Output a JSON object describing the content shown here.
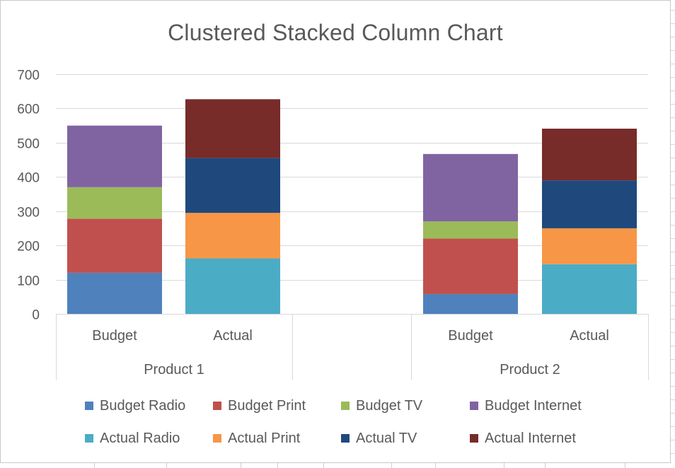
{
  "chart_data": {
    "type": "bar",
    "stacked": true,
    "title": "Clustered Stacked Column Chart",
    "ylim": [
      0,
      700
    ],
    "yticks": [
      0,
      100,
      200,
      300,
      400,
      500,
      600,
      700
    ],
    "grid": true,
    "legend_position": "bottom",
    "groups": [
      {
        "label": "Product 1",
        "columns": [
          {
            "label": "Budget",
            "segments": [
              {
                "name": "Budget Radio",
                "value": 120,
                "color": "#4f81bd"
              },
              {
                "name": "Budget Print",
                "value": 158,
                "color": "#c0504d"
              },
              {
                "name": "Budget TV",
                "value": 92,
                "color": "#9bbb59"
              },
              {
                "name": "Budget Internet",
                "value": 180,
                "color": "#8064a2"
              }
            ]
          },
          {
            "label": "Actual",
            "segments": [
              {
                "name": "Actual Radio",
                "value": 162,
                "color": "#4bacc6"
              },
              {
                "name": "Actual Print",
                "value": 133,
                "color": "#f79646"
              },
              {
                "name": "Actual TV",
                "value": 160,
                "color": "#1f497d"
              },
              {
                "name": "Actual Internet",
                "value": 172,
                "color": "#772c2a"
              }
            ]
          }
        ]
      },
      {
        "label": "Product 2",
        "columns": [
          {
            "label": "Budget",
            "segments": [
              {
                "name": "Budget Radio",
                "value": 58,
                "color": "#4f81bd"
              },
              {
                "name": "Budget Print",
                "value": 162,
                "color": "#c0504d"
              },
              {
                "name": "Budget TV",
                "value": 50,
                "color": "#9bbb59"
              },
              {
                "name": "Budget Internet",
                "value": 197,
                "color": "#8064a2"
              }
            ]
          },
          {
            "label": "Actual",
            "segments": [
              {
                "name": "Actual Radio",
                "value": 145,
                "color": "#4bacc6"
              },
              {
                "name": "Actual Print",
                "value": 105,
                "color": "#f79646"
              },
              {
                "name": "Actual TV",
                "value": 140,
                "color": "#1f497d"
              },
              {
                "name": "Actual Internet",
                "value": 151,
                "color": "#772c2a"
              }
            ]
          }
        ]
      }
    ],
    "legend": [
      {
        "name": "Budget Radio",
        "color": "#4f81bd"
      },
      {
        "name": "Budget Print",
        "color": "#c0504d"
      },
      {
        "name": "Budget TV",
        "color": "#9bbb59"
      },
      {
        "name": "Budget Internet",
        "color": "#8064a2"
      },
      {
        "name": "Actual Radio",
        "color": "#4bacc6"
      },
      {
        "name": "Actual Print",
        "color": "#f79646"
      },
      {
        "name": "Actual TV",
        "color": "#1f497d"
      },
      {
        "name": "Actual Internet",
        "color": "#772c2a"
      }
    ]
  },
  "colors": {
    "gridline": "#d9d9d9",
    "axis_text": "#595959",
    "title_text": "#595959"
  }
}
